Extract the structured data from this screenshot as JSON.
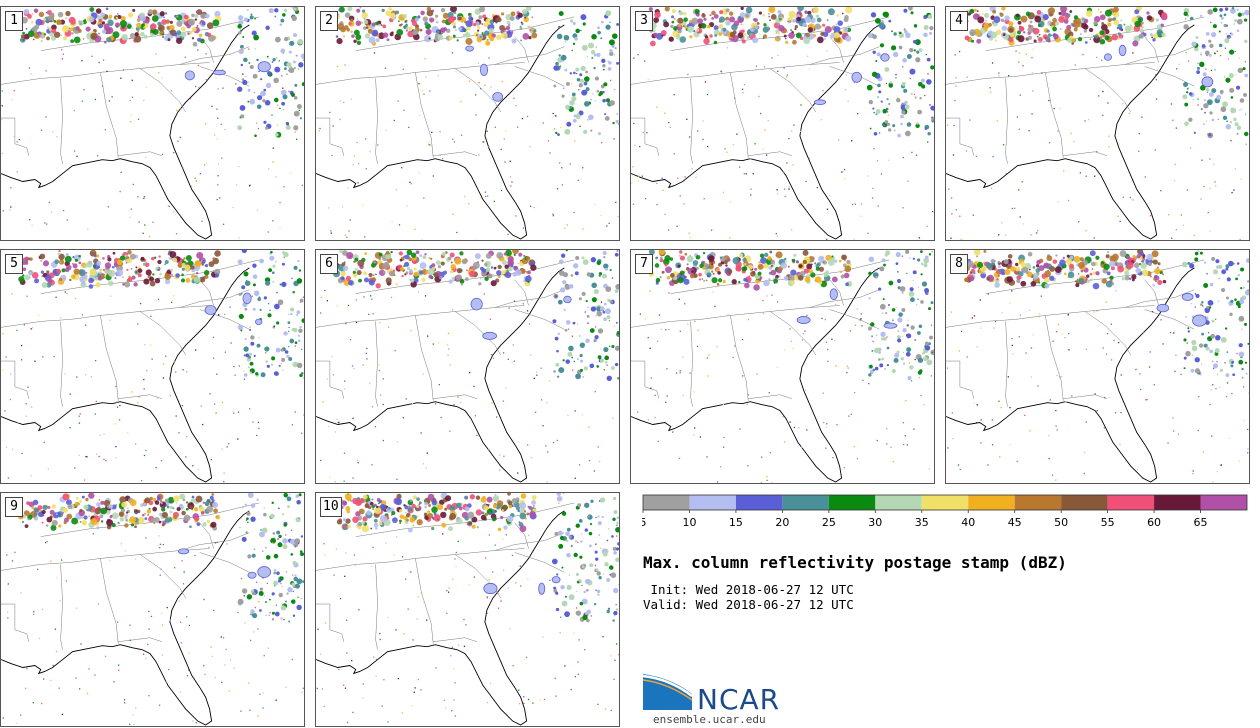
{
  "panels": [
    {
      "label": "1"
    },
    {
      "label": "2"
    },
    {
      "label": "3"
    },
    {
      "label": "4"
    },
    {
      "label": "5"
    },
    {
      "label": "6"
    },
    {
      "label": "7"
    },
    {
      "label": "8"
    },
    {
      "label": "9"
    },
    {
      "label": "10"
    }
  ],
  "colorbar": {
    "ticks": [
      "5",
      "10",
      "15",
      "20",
      "25",
      "30",
      "35",
      "40",
      "45",
      "50",
      "55",
      "60",
      "65"
    ],
    "colors": [
      "#a0a0a0",
      "#b4bef0",
      "#5a5fd8",
      "#4a9098",
      "#0a8a10",
      "#b4d8b4",
      "#f0e068",
      "#f0b020",
      "#b87830",
      "#885838",
      "#f05078",
      "#681838",
      "#b050a8"
    ]
  },
  "title": "Max. column reflectivity postage stamp (dBZ)",
  "init_line": " Init: Wed 2018-06-27 12 UTC",
  "valid_line": "Valid: Wed 2018-06-27 12 UTC",
  "logo": {
    "name": "NCAR",
    "url": "ensemble.ucar.edu",
    "colors": {
      "blue": "#1b75bc",
      "navy": "#1b4a8a"
    }
  }
}
